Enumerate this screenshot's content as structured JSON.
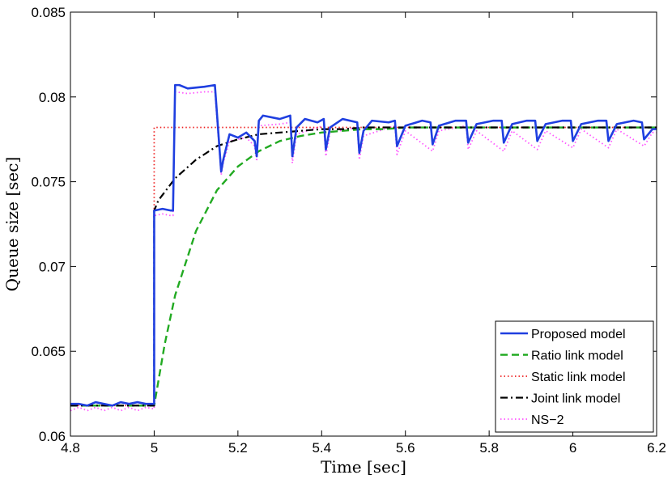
{
  "chart_data": {
    "type": "line",
    "title": "",
    "xlabel": "Time [sec]",
    "ylabel": "Queue size [sec]",
    "xlim": [
      4.8,
      6.2
    ],
    "ylim": [
      0.06,
      0.085
    ],
    "xticks": [
      4.8,
      5,
      5.2,
      5.4,
      5.6,
      5.8,
      6,
      6.2
    ],
    "yticks": [
      0.06,
      0.065,
      0.07,
      0.075,
      0.08,
      0.085
    ],
    "xtick_labels": [
      "4.8",
      "5",
      "5.2",
      "5.4",
      "5.6",
      "5.8",
      "6",
      "6.2"
    ],
    "ytick_labels": [
      "0.06",
      "0.065",
      "0.07",
      "0.075",
      "0.08",
      "0.085"
    ],
    "grid": false,
    "legend_position": "bottom-right",
    "series": [
      {
        "name": "Proposed model",
        "color": "#1f3fe0",
        "style": "solid",
        "x": [
          4.8,
          4.82,
          4.84,
          4.86,
          4.88,
          4.9,
          4.92,
          4.94,
          4.96,
          4.98,
          5.0,
          5.0,
          5.02,
          5.04,
          5.045,
          5.05,
          5.06,
          5.08,
          5.12,
          5.145,
          5.16,
          5.165,
          5.18,
          5.2,
          5.22,
          5.24,
          5.245,
          5.25,
          5.26,
          5.3,
          5.325,
          5.33,
          5.34,
          5.36,
          5.39,
          5.405,
          5.41,
          5.42,
          5.45,
          5.485,
          5.49,
          5.5,
          5.52,
          5.56,
          5.575,
          5.58,
          5.6,
          5.64,
          5.66,
          5.665,
          5.68,
          5.72,
          5.745,
          5.75,
          5.77,
          5.81,
          5.83,
          5.835,
          5.855,
          5.89,
          5.91,
          5.915,
          5.935,
          5.975,
          5.995,
          6.0,
          6.02,
          6.06,
          6.08,
          6.085,
          6.105,
          6.145,
          6.165,
          6.17,
          6.19,
          6.2
        ],
        "y": [
          0.0619,
          0.0619,
          0.0618,
          0.062,
          0.0619,
          0.0618,
          0.062,
          0.0619,
          0.062,
          0.0619,
          0.0619,
          0.0733,
          0.0734,
          0.0733,
          0.0733,
          0.0807,
          0.0807,
          0.0805,
          0.0806,
          0.0807,
          0.0756,
          0.0763,
          0.0778,
          0.0776,
          0.0779,
          0.0774,
          0.0765,
          0.0786,
          0.0789,
          0.0787,
          0.0789,
          0.0765,
          0.0782,
          0.0787,
          0.0785,
          0.0787,
          0.0769,
          0.0782,
          0.0787,
          0.0785,
          0.0767,
          0.078,
          0.0786,
          0.0785,
          0.0786,
          0.0771,
          0.0783,
          0.0786,
          0.0785,
          0.0772,
          0.0783,
          0.0786,
          0.0786,
          0.0773,
          0.0784,
          0.0786,
          0.0786,
          0.0773,
          0.0784,
          0.0786,
          0.0786,
          0.0774,
          0.0784,
          0.0786,
          0.0786,
          0.0774,
          0.0784,
          0.0786,
          0.0786,
          0.0774,
          0.0784,
          0.0786,
          0.0785,
          0.0775,
          0.0781,
          0.0781
        ]
      },
      {
        "name": "Ratio link model",
        "color": "#22aa22",
        "style": "dashed",
        "x": [
          4.8,
          5.0,
          5.0,
          5.025,
          5.05,
          5.1,
          5.15,
          5.2,
          5.25,
          5.3,
          5.35,
          5.4,
          5.45,
          5.5,
          5.55,
          5.6,
          5.7,
          5.8,
          5.9,
          6.0,
          6.2
        ],
        "y": [
          0.0618,
          0.0618,
          0.0618,
          0.0654,
          0.0683,
          0.0721,
          0.0745,
          0.0759,
          0.0768,
          0.0774,
          0.0777,
          0.0779,
          0.078,
          0.0781,
          0.0781,
          0.0782,
          0.0782,
          0.0782,
          0.0782,
          0.0782,
          0.0782
        ]
      },
      {
        "name": "Static link model",
        "color": "#ee2222",
        "style": "dotted",
        "x": [
          4.8,
          5.0,
          5.0,
          6.2
        ],
        "y": [
          0.0618,
          0.0618,
          0.0782,
          0.0782
        ]
      },
      {
        "name": "Joint link model",
        "color": "#000000",
        "style": "dashdot",
        "x": [
          4.8,
          5.0,
          5.0,
          5.01,
          5.05,
          5.1,
          5.15,
          5.2,
          5.25,
          5.3,
          5.35,
          5.4,
          5.45,
          5.5,
          5.6,
          5.8,
          6.0,
          6.2
        ],
        "y": [
          0.0618,
          0.0618,
          0.0733,
          0.0739,
          0.0752,
          0.0763,
          0.0771,
          0.0775,
          0.0778,
          0.0779,
          0.078,
          0.0781,
          0.0781,
          0.0782,
          0.0782,
          0.0782,
          0.0782,
          0.0782
        ]
      },
      {
        "name": "NS−2",
        "color": "#ff55ff",
        "style": "dotted",
        "x": [
          4.8,
          4.82,
          4.84,
          4.86,
          4.88,
          4.9,
          4.92,
          4.94,
          4.96,
          4.98,
          5.0,
          5.0,
          5.02,
          5.04,
          5.045,
          5.05,
          5.08,
          5.12,
          5.145,
          5.16,
          5.165,
          5.18,
          5.22,
          5.24,
          5.245,
          5.25,
          5.3,
          5.325,
          5.33,
          5.34,
          5.39,
          5.405,
          5.41,
          5.42,
          5.485,
          5.49,
          5.5,
          5.575,
          5.58,
          5.6,
          5.665,
          5.68,
          5.745,
          5.75,
          5.77,
          5.835,
          5.855,
          5.915,
          5.935,
          6.0,
          6.02,
          6.085,
          6.105,
          6.17,
          6.19,
          6.2
        ],
        "y": [
          0.0615,
          0.0617,
          0.0615,
          0.0617,
          0.0615,
          0.0617,
          0.0615,
          0.0617,
          0.0615,
          0.0617,
          0.0616,
          0.073,
          0.0731,
          0.073,
          0.073,
          0.0803,
          0.0802,
          0.0803,
          0.0803,
          0.0754,
          0.0761,
          0.0774,
          0.0776,
          0.0771,
          0.0762,
          0.0783,
          0.0784,
          0.0785,
          0.0761,
          0.0778,
          0.0782,
          0.0783,
          0.0765,
          0.0779,
          0.0782,
          0.0763,
          0.0777,
          0.0783,
          0.0766,
          0.078,
          0.0768,
          0.078,
          0.0783,
          0.0769,
          0.078,
          0.0768,
          0.078,
          0.0769,
          0.078,
          0.077,
          0.0781,
          0.077,
          0.0781,
          0.0771,
          0.0779,
          0.0779
        ]
      }
    ]
  }
}
